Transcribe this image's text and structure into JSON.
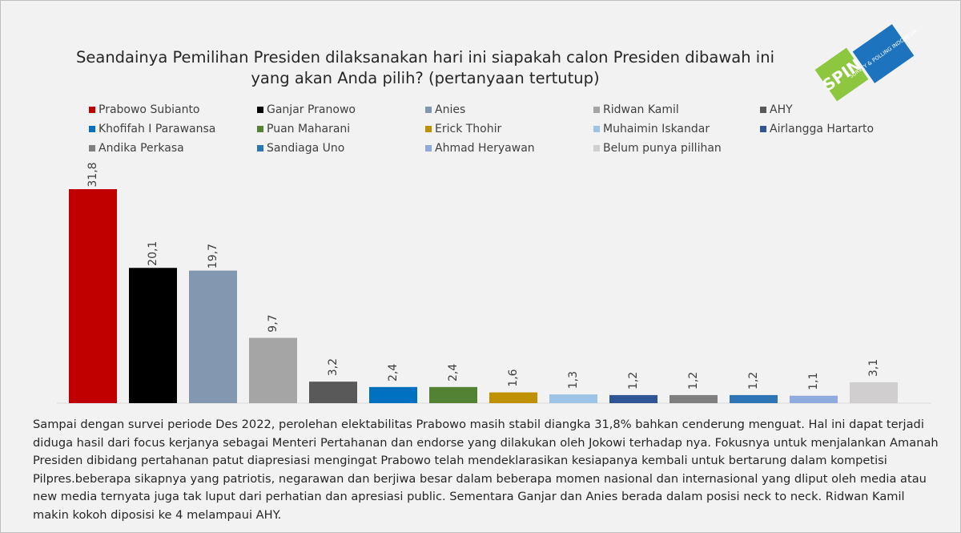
{
  "chart_data": {
    "type": "bar",
    "title": "Seandainya Pemilihan Presiden dilaksanakan hari ini siapakah calon Presiden dibawah ini yang akan Anda pilih? (pertanyaan tertutup)",
    "categories": [
      "Prabowo Subianto",
      "Ganjar Pranowo",
      "Anies",
      "Ridwan Kamil",
      "AHY",
      "Khofifah I Parawansa",
      "Puan Maharani",
      "Erick Thohir",
      "Muhaimin Iskandar",
      "Airlangga Hartarto",
      "Andika Perkasa",
      "Sandiaga Uno",
      "Ahmad Heryawan",
      "Belum punya pillihan"
    ],
    "values": [
      31.8,
      20.1,
      19.7,
      9.7,
      3.2,
      2.4,
      2.4,
      1.6,
      1.3,
      1.2,
      1.2,
      1.2,
      1.1,
      3.1
    ],
    "value_labels": [
      "31,8",
      "20,1",
      "19,7",
      "9,7",
      "3,2",
      "2,4",
      "2,4",
      "1,6",
      "1,3",
      "1,2",
      "1,2",
      "1,2",
      "1,1",
      "3,1"
    ],
    "colors": [
      "#c00000",
      "#000000",
      "#8497b0",
      "#a5a5a5",
      "#595959",
      "#0070c0",
      "#548235",
      "#bf9000",
      "#9dc3e6",
      "#2f5597",
      "#7f7f7f",
      "#2e75b6",
      "#8faadc",
      "#d0cece"
    ],
    "legend": "top"
  },
  "logo": {
    "name": "SPIN",
    "tagline": "SURVEY & POLLING INDONESIA"
  },
  "note": "Sampai dengan survei periode Des 2022, perolehan elektabilitas Prabowo masih stabil diangka 31,8% bahkan cenderung menguat. Hal ini dapat terjadi diduga hasil dari focus kerjanya sebagai Menteri Pertahanan dan endorse yang dilakukan oleh Jokowi terhadap nya. Fokusnya untuk menjalankan Amanah Presiden dibidang pertahanan patut diapresiasi mengingat Prabowo telah mendeklarasikan kesiapanya kembali untuk bertarung dalam kompetisi Pilpres.beberapa sikapnya yang patriotis, negarawan dan berjiwa besar dalam beberapa momen nasional dan internasional yang dliput oleh media atau new media ternyata juga tak luput dari perhatian dan apresiasi public. Sementara Ganjar dan Anies berada dalam posisi neck to neck. Ridwan Kamil makin kokoh diposisi ke 4 melampaui AHY."
}
